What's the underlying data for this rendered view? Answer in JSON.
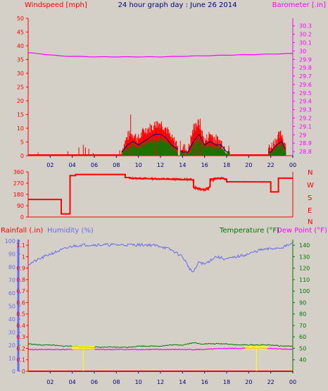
{
  "header": {
    "title": "24 hour graph day : June 26 2014",
    "left_label": "Windspeed [mph]",
    "right_label": "Barometer [.in]"
  },
  "middle": {
    "compass_labels": [
      "N",
      "W",
      "S",
      "E",
      "N"
    ]
  },
  "bottom_header": {
    "rain_label": "Rainfall (.in)",
    "humidity_label": "Humidity (%)",
    "temp_label": "Temperature (°F)",
    "dew_label": "Dew Point (°F)"
  },
  "colors": {
    "background": "#d4d0c8",
    "wind": "#ff0000",
    "gust": "#000080",
    "wind_avg": "#008000",
    "barometer": "#ff00ff",
    "direction": "#ff0000",
    "humidity": "#6a6aee",
    "temperature": "#007700",
    "dewpoint": "#ff00ff",
    "rain": "#ffff00",
    "title": "#000080"
  },
  "chart_data": [
    {
      "type": "line",
      "name": "wind_baro",
      "x_ticks": [
        "02",
        "04",
        "06",
        "08",
        "10",
        "12",
        "14",
        "16",
        "18",
        "20",
        "22",
        "00"
      ],
      "y_left_ticks": [
        0,
        5,
        10,
        15,
        20,
        25,
        30,
        35,
        40,
        45,
        50
      ],
      "y_left_range": [
        0,
        50
      ],
      "y_right_ticks": [
        28.8,
        28.9,
        29,
        29.1,
        29.2,
        29.3,
        29.4,
        29.5,
        29.6,
        29.7,
        29.8,
        29.9,
        30,
        30.1,
        30.2,
        30.3
      ],
      "y_right_range": [
        28.75,
        30.39
      ],
      "barometer": {
        "x": [
          0,
          3,
          6,
          9,
          12,
          15,
          18,
          21,
          24
        ],
        "y": [
          29.98,
          29.94,
          29.93,
          29.93,
          29.93,
          29.94,
          29.95,
          29.96,
          29.97
        ]
      },
      "wind_gust": {
        "x": [
          8.5,
          9.0,
          9.5,
          10,
          10.5,
          11,
          11.5,
          12,
          12.5,
          13,
          14,
          14.5,
          15,
          15.5,
          16,
          16.5,
          17,
          17.5,
          18,
          22,
          22.5,
          23,
          23.3
        ],
        "y": [
          2,
          7,
          8,
          6,
          9,
          10,
          11,
          12,
          10,
          6,
          3,
          2,
          10,
          12,
          5,
          8,
          6,
          5,
          2,
          3,
          6,
          8,
          4
        ]
      },
      "wind_avg": {
        "x": [
          8.5,
          9.0,
          9.5,
          10,
          10.5,
          11,
          11.5,
          12,
          12.5,
          13,
          14,
          14.5,
          15,
          15.5,
          16,
          16.5,
          17,
          17.5,
          18,
          22,
          22.5,
          23,
          23.3
        ],
        "y": [
          1,
          3,
          4,
          3,
          4,
          5,
          6,
          6,
          5,
          3,
          1,
          1,
          4,
          6,
          3,
          4,
          3,
          3,
          1,
          1,
          3,
          4,
          2
        ]
      }
    },
    {
      "type": "line",
      "name": "wind_direction",
      "y_ticks": [
        0,
        90,
        180,
        270,
        360
      ],
      "y_range": [
        0,
        360
      ],
      "direction": {
        "x": [
          0,
          3,
          3,
          3.8,
          3.8,
          4.3,
          4.3,
          8.8,
          8.8,
          9.2,
          9.2,
          15,
          15,
          16,
          16.5,
          16.5,
          17.5,
          18,
          18,
          22,
          22,
          22.7,
          22.7,
          24
        ],
        "y": [
          140,
          140,
          25,
          25,
          330,
          330,
          340,
          340,
          315,
          315,
          310,
          300,
          240,
          220,
          240,
          300,
          310,
          300,
          280,
          280,
          200,
          200,
          310,
          310
        ]
      }
    },
    {
      "type": "line",
      "name": "rain_hum_temp",
      "y_rain_ticks": [
        0,
        0.1,
        0.2,
        0.3,
        0.4,
        0.5,
        0.6,
        0.7,
        0.8,
        0.9,
        1,
        1.1
      ],
      "y_rain_range": [
        0,
        1.15
      ],
      "y_hum_ticks": [
        0,
        10,
        20,
        30,
        40,
        50,
        60,
        70,
        80,
        90,
        100
      ],
      "y_hum_range": [
        0,
        100
      ],
      "y_temp_ticks": [
        40,
        50,
        60,
        70,
        80,
        90,
        100,
        110,
        120,
        130,
        140
      ],
      "y_temp_range": [
        30,
        145
      ],
      "humidity": {
        "x": [
          0,
          1,
          2,
          3,
          4,
          5,
          6,
          7,
          8,
          9,
          10,
          11,
          12,
          13,
          14,
          14.7,
          15,
          15.5,
          16,
          17,
          18,
          19,
          20,
          21,
          22,
          23,
          24
        ],
        "y": [
          82,
          86,
          90,
          93,
          96,
          97,
          97,
          97,
          97,
          97,
          97,
          97,
          96,
          93,
          88,
          78,
          76,
          84,
          82,
          88,
          86,
          88,
          90,
          93,
          94,
          95,
          98
        ]
      },
      "temperature": {
        "x": [
          0,
          1,
          2,
          3,
          4,
          5,
          6,
          7,
          8,
          9,
          10,
          11,
          12,
          13,
          14,
          15,
          15.5,
          16,
          17,
          18,
          19,
          20,
          21,
          22,
          23,
          24
        ],
        "y": [
          54,
          53,
          53,
          52,
          52,
          51,
          51,
          51,
          51,
          51,
          52,
          52,
          52,
          53,
          53,
          55,
          54,
          54,
          54,
          54,
          53,
          53,
          53,
          53,
          52,
          52
        ]
      },
      "dewpoint": {
        "x": [
          0,
          2,
          4,
          6,
          8,
          10,
          12,
          14,
          16,
          18,
          20,
          22,
          24
        ],
        "y": [
          49,
          49,
          49,
          49,
          49,
          49,
          49,
          49,
          49,
          50,
          50,
          50,
          49
        ]
      },
      "rain_marks": [
        5.0,
        20.7
      ]
    }
  ]
}
